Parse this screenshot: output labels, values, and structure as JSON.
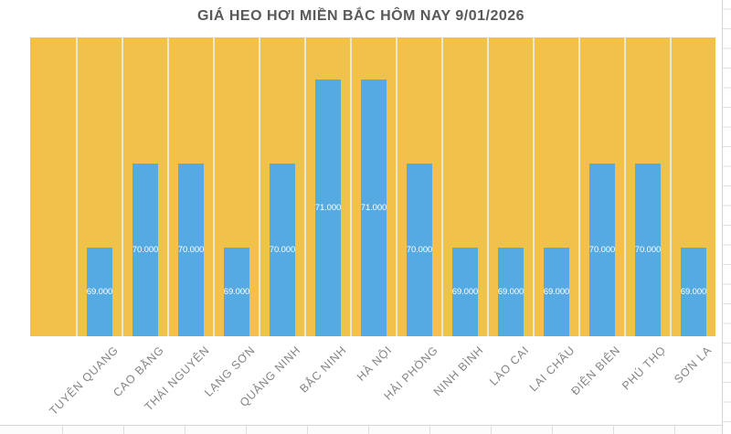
{
  "chart_data": {
    "type": "bar",
    "title": "GIÁ HEO HƠI MIỀN BẮC HÔM NAY 9/01/2026",
    "categories": [
      "TUYÊN QUANG",
      "CAO BẰNG",
      "THÁI NGUYÊN",
      "LẠNG SƠN",
      "QUẢNG NINH",
      "BẮC NINH",
      "HÀ NỘI",
      "HẢI PHÒNG",
      "NINH BÌNH",
      "LÀO CAI",
      "LAI CHÂU",
      "ĐIỆN BIÊN",
      "PHÚ THỌ",
      "SƠN LA"
    ],
    "values": [
      69000,
      70000,
      70000,
      69000,
      70000,
      71000,
      71000,
      70000,
      69000,
      69000,
      69000,
      70000,
      70000,
      69000
    ],
    "data_labels": [
      "69.000",
      "70.000",
      "70.000",
      "69.000",
      "70.000",
      "71.000",
      "71.000",
      "70.000",
      "69.000",
      "69.000",
      "69.000",
      "70.000",
      "70.000",
      "69.000"
    ],
    "data_label_position": "center-inside-bar",
    "xlabel": "",
    "ylabel": "",
    "value_axis_visible": false,
    "ylim_estimate": [
      68000,
      71500
    ],
    "grid": "vertical category separators, pale lines on orange plot background",
    "legend": "none",
    "colors": {
      "bar": "#55AAE2",
      "plot_background": "#F2C149",
      "gridline": "#EDE8D5",
      "value_label": "#FFFFFF",
      "category_label": "#848484",
      "title": "#595959"
    }
  }
}
